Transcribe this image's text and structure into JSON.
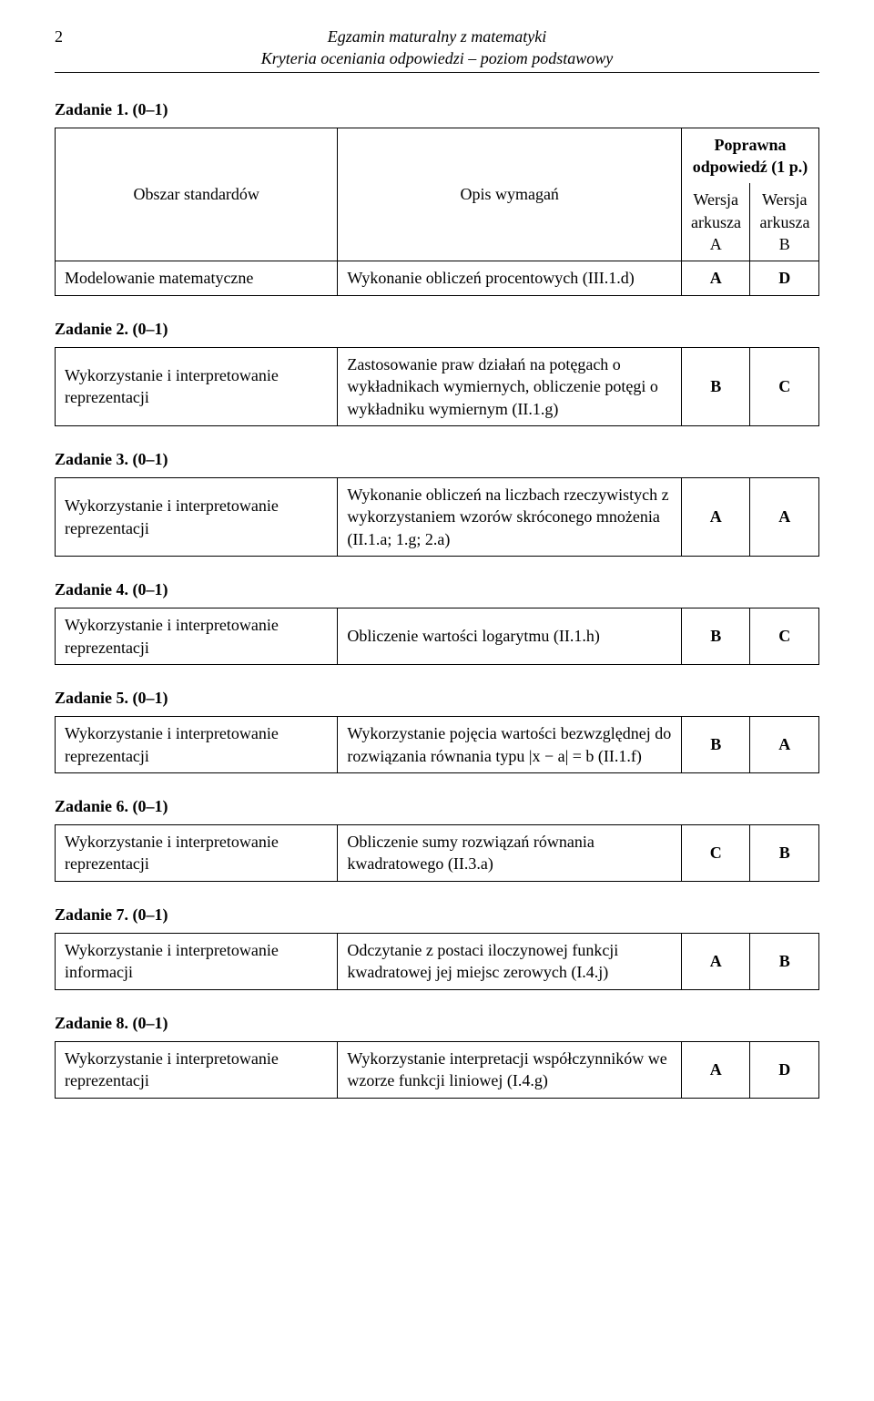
{
  "header": {
    "page_number": "2",
    "line1": "Egzamin maturalny z matematyki",
    "line2": "Kryteria oceniania odpowiedzi – poziom podstawowy"
  },
  "task1": {
    "title": "Zadanie 1. (0–1)",
    "h_area": "Obszar standardów",
    "h_desc": "Opis wymagań",
    "h_ans_top": "Poprawna odpowiedź (1 p.)",
    "h_wA": "Wersja arkusza A",
    "h_wB": "Wersja arkusza B",
    "area": "Modelowanie matematyczne",
    "desc": "Wykonanie obliczeń procentowych (III.1.d)",
    "ansA": "A",
    "ansB": "D"
  },
  "task2": {
    "title": "Zadanie 2. (0–1)",
    "area": "Wykorzystanie i interpretowanie reprezentacji",
    "desc": "Zastosowanie praw działań na potęgach o wykładnikach wymiernych, obliczenie potęgi o wykładniku wymiernym (II.1.g)",
    "ansA": "B",
    "ansB": "C"
  },
  "task3": {
    "title": "Zadanie 3. (0–1)",
    "area": "Wykorzystanie i interpretowanie reprezentacji",
    "desc": "Wykonanie obliczeń na liczbach rzeczywistych z wykorzystaniem wzorów skróconego mnożenia (II.1.a; 1.g; 2.a)",
    "ansA": "A",
    "ansB": "A"
  },
  "task4": {
    "title": "Zadanie 4. (0–1)",
    "area": "Wykorzystanie i interpretowanie reprezentacji",
    "desc": "Obliczenie wartości logarytmu (II.1.h)",
    "ansA": "B",
    "ansB": "C"
  },
  "task5": {
    "title": "Zadanie 5. (0–1)",
    "area": "Wykorzystanie i interpretowanie reprezentacji",
    "desc_pre": "Wykorzystanie pojęcia wartości bezwzględnej do rozwiązania równania typu ",
    "desc_math": "|x − a| = b",
    "desc_post": " (II.1.f)",
    "ansA": "B",
    "ansB": "A"
  },
  "task6": {
    "title": "Zadanie 6. (0–1)",
    "area": "Wykorzystanie i interpretowanie reprezentacji",
    "desc": "Obliczenie sumy rozwiązań równania kwadratowego (II.3.a)",
    "ansA": "C",
    "ansB": "B"
  },
  "task7": {
    "title": "Zadanie 7. (0–1)",
    "area": "Wykorzystanie i interpretowanie informacji",
    "desc": "Odczytanie z postaci iloczynowej funkcji kwadratowej jej miejsc zerowych (I.4.j)",
    "ansA": "A",
    "ansB": "B"
  },
  "task8": {
    "title": "Zadanie 8. (0–1)",
    "area": "Wykorzystanie i interpretowanie reprezentacji",
    "desc": "Wykorzystanie interpretacji współczynników we wzorze funkcji liniowej (I.4.g)",
    "ansA": "A",
    "ansB": "D"
  }
}
